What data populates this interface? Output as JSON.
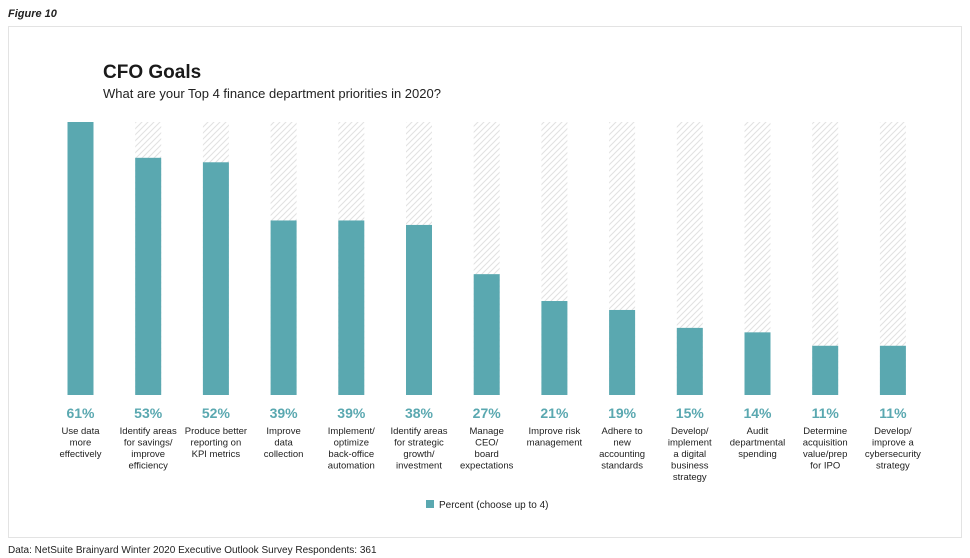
{
  "figure_label": "Figure 10",
  "chart_data": {
    "type": "bar",
    "title": "CFO Goals",
    "subtitle": "What are your Top 4 finance department priorities in 2020?",
    "categories": [
      [
        "Use data",
        "more",
        "effectively"
      ],
      [
        "Identify areas",
        "for savings/",
        "improve",
        "efficiency"
      ],
      [
        "Produce better",
        "reporting on",
        "KPI metrics"
      ],
      [
        "Improve",
        "data",
        "collection"
      ],
      [
        "Implement/",
        "optimize",
        "back-office",
        "automation"
      ],
      [
        "Identify areas",
        "for strategic",
        "growth/",
        "investment"
      ],
      [
        "Manage",
        "CEO/",
        "board",
        "expectations"
      ],
      [
        "Improve risk",
        "management"
      ],
      [
        "Adhere to",
        "new",
        "accounting",
        "standards"
      ],
      [
        "Develop/",
        "implement",
        "a digital",
        "business",
        "strategy"
      ],
      [
        "Audit",
        "departmental",
        "spending"
      ],
      [
        "Determine",
        "acquisition",
        "value/prep",
        "for IPO"
      ],
      [
        "Develop/",
        "improve a",
        "cybersecurity",
        "strategy"
      ]
    ],
    "values": [
      61,
      53,
      52,
      39,
      39,
      38,
      27,
      21,
      19,
      15,
      14,
      11,
      11
    ],
    "value_labels": [
      "61%",
      "53%",
      "52%",
      "39%",
      "39%",
      "38%",
      "27%",
      "21%",
      "19%",
      "15%",
      "14%",
      "11%",
      "11%"
    ],
    "ylim": [
      0,
      61
    ],
    "series_name": "Percent (choose up to 4)",
    "legend_position": "bottom-center",
    "colors": {
      "bar": "#5aa8b0",
      "value_label": "#5aa8b0",
      "hatch": "#e2e2e2"
    }
  },
  "footer": "Data: NetSuite Brainyard Winter 2020 Executive Outlook Survey    Respondents: 361"
}
